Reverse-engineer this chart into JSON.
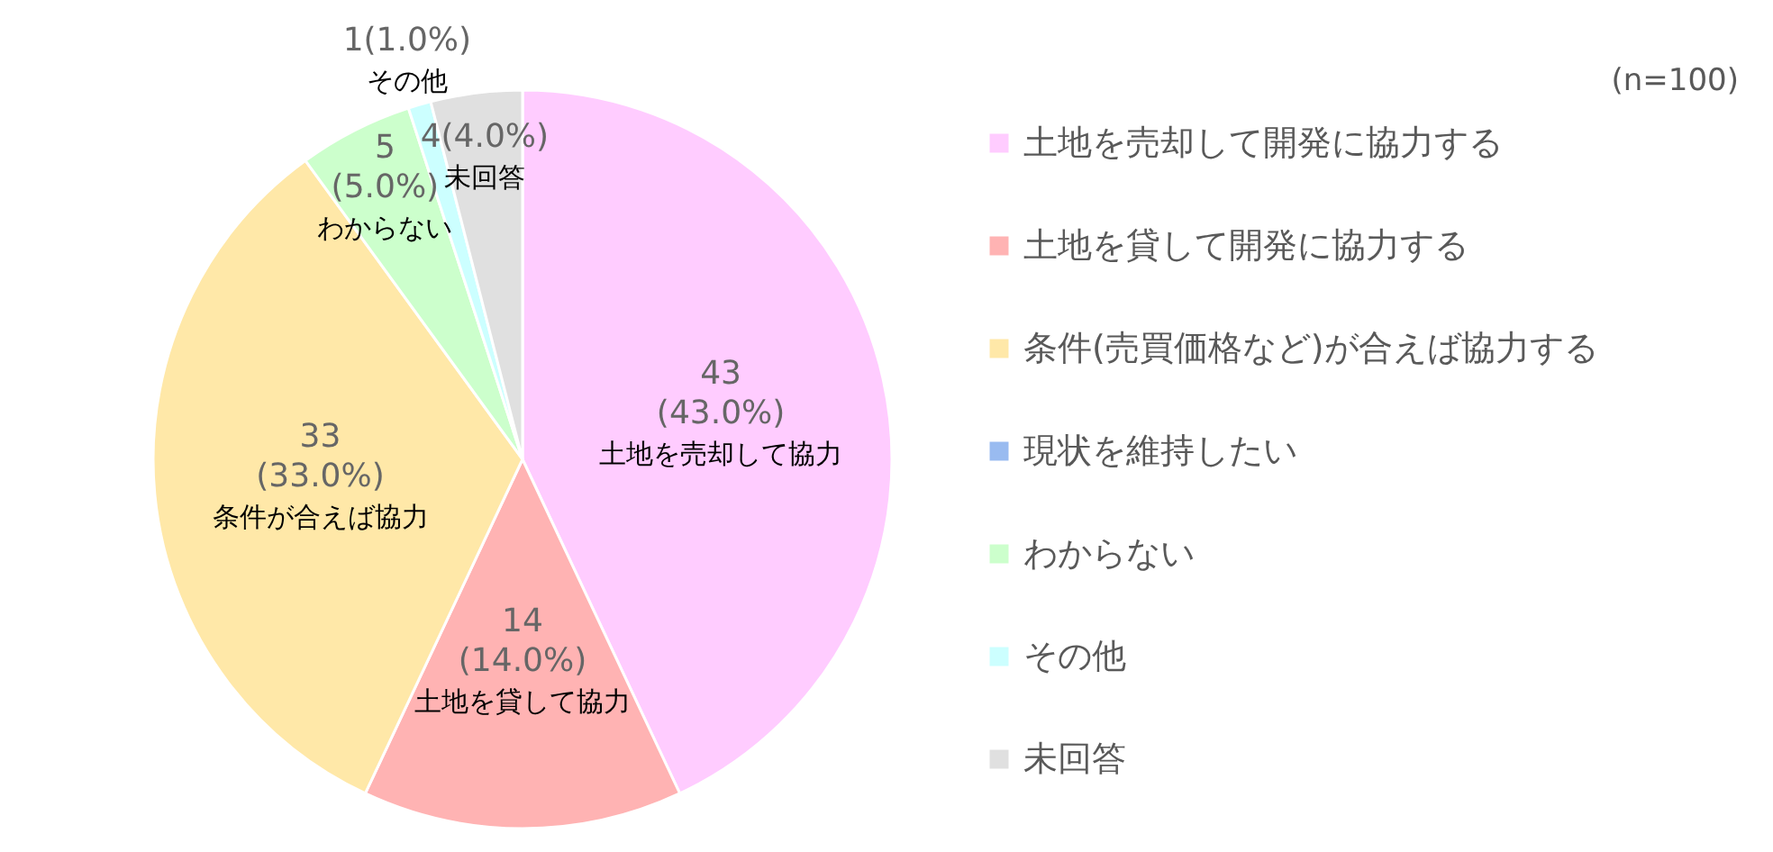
{
  "chart_data": {
    "type": "pie",
    "subtitle": "(n=100)",
    "categories": [
      "土地を売却して開発に協力する",
      "土地を貸して開発に協力する",
      "条件(売買価格など)が合えば協力する",
      "現状を維持したい",
      "わからない",
      "その他",
      "未回答"
    ],
    "values": [
      43,
      14,
      33,
      0,
      5,
      1,
      4
    ],
    "colors": [
      "#ffccff",
      "#ffb3b3",
      "#ffe8a8",
      "#99bbf0",
      "#ccffcc",
      "#ccffff",
      "#e0e0e0"
    ],
    "value_labels": [
      "43\n(43.0%)",
      "14\n(14.0%)",
      "33\n(33.0%)",
      null,
      "5\n(5.0%)",
      "1(1.0%)",
      "4(4.0%)"
    ],
    "annotations": [
      {
        "text": "土地を売却して協力",
        "x": "土地を売却して開発に協力する"
      },
      {
        "text": "土地を貸して協力",
        "x": "土地を貸して開発に協力する"
      },
      {
        "text": "条件が合えば協力",
        "x": "条件(売買価格など)が合えば協力する"
      },
      {
        "text": "わからない",
        "x": "わからない"
      },
      {
        "text": "その他",
        "x": "その他"
      },
      {
        "text": "未回答",
        "x": "未回答"
      }
    ],
    "legend": "right"
  }
}
